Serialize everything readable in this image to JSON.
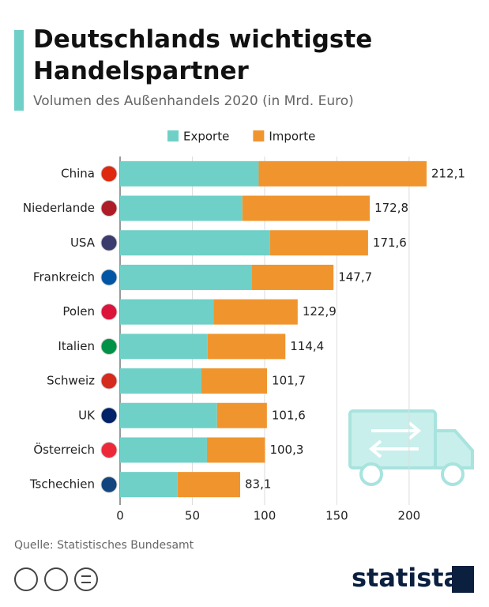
{
  "chart_data": {
    "type": "stacked-barh",
    "title": "Deutschlands wichtigste Handelspartner",
    "subtitle": "Volumen des Außenhandels 2020 (in Mrd. Euro)",
    "categories": [
      "China",
      "Niederlande",
      "USA",
      "Frankreich",
      "Polen",
      "Italien",
      "Schweiz",
      "UK",
      "Österreich",
      "Tschechien"
    ],
    "series": [
      {
        "name": "Exporte",
        "color": "#6fd0c7",
        "values": [
          95.9,
          84.6,
          103.8,
          90.9,
          64.8,
          60.6,
          56.3,
          67.1,
          60.1,
          39.8
        ]
      },
      {
        "name": "Importe",
        "color": "#f0952e",
        "values": [
          116.2,
          88.2,
          67.8,
          56.8,
          58.1,
          53.8,
          45.4,
          34.5,
          40.2,
          43.3
        ]
      }
    ],
    "totals": [
      212.1,
      172.8,
      171.6,
      147.7,
      122.9,
      114.4,
      101.7,
      101.6,
      100.3,
      83.1
    ],
    "total_labels": [
      "212,1",
      "172,8",
      "171,6",
      "147,7",
      "122,9",
      "114,4",
      "101,7",
      "101,6",
      "100,3",
      "83,1"
    ],
    "xlim": [
      0,
      212.1
    ],
    "xticks": [
      0,
      50,
      100,
      150,
      200
    ],
    "grid": true,
    "source": "Quelle: Statistisches Bundesamt",
    "logo": "statista"
  }
}
